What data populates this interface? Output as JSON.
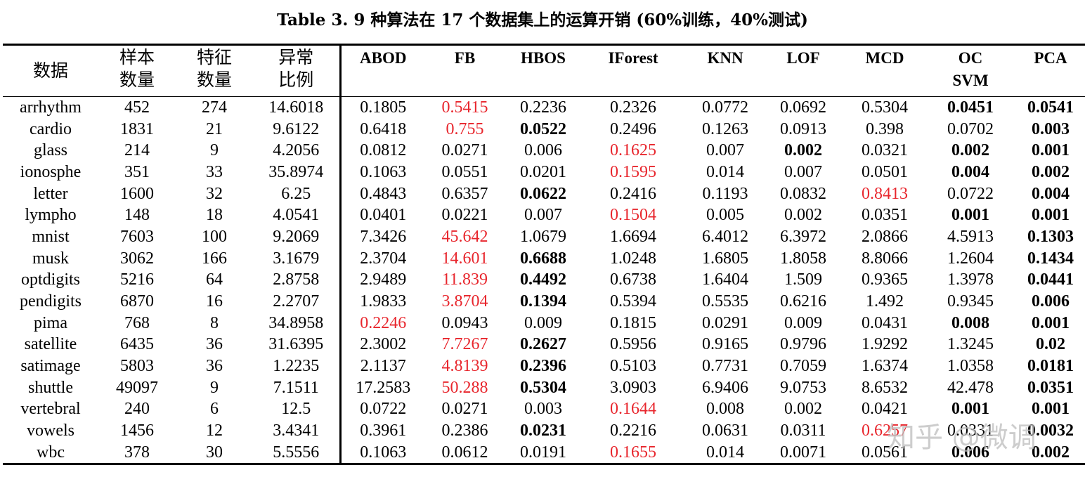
{
  "caption": "Table 3. 9 种算法在 17 个数据集上的运算开销 (60%训练，40%测试)",
  "colors": {
    "red": "#e8262d",
    "text": "#000000"
  },
  "header": {
    "dataset": "数据",
    "samples": [
      "样本",
      "数量"
    ],
    "features": [
      "特征",
      "数量"
    ],
    "outlier_ratio": [
      "异常",
      "比例"
    ],
    "algorithms": [
      [
        "ABOD"
      ],
      [
        "FB"
      ],
      [
        "HBOS"
      ],
      [
        "IForest"
      ],
      [
        "KNN"
      ],
      [
        "LOF"
      ],
      [
        "MCD"
      ],
      [
        "OC",
        "SVM"
      ],
      [
        "PCA"
      ]
    ]
  },
  "rows": [
    {
      "name": "arrhythm",
      "n": "452",
      "d": "274",
      "ratio": "14.6018",
      "v": [
        "0.1805",
        "0.5415",
        "0.2236",
        "0.2326",
        "0.0772",
        "0.0692",
        "0.5304",
        "0.0451",
        "0.0541"
      ],
      "red": [
        1
      ],
      "bold": [
        7,
        8
      ]
    },
    {
      "name": "cardio",
      "n": "1831",
      "d": "21",
      "ratio": "9.6122",
      "v": [
        "0.6418",
        "0.755",
        "0.0522",
        "0.2496",
        "0.1263",
        "0.0913",
        "0.398",
        "0.0702",
        "0.003"
      ],
      "red": [
        1
      ],
      "bold": [
        2,
        8
      ]
    },
    {
      "name": "glass",
      "n": "214",
      "d": "9",
      "ratio": "4.2056",
      "v": [
        "0.0812",
        "0.0271",
        "0.006",
        "0.1625",
        "0.007",
        "0.002",
        "0.0321",
        "0.002",
        "0.001"
      ],
      "red": [
        3
      ],
      "bold": [
        5,
        7,
        8
      ]
    },
    {
      "name": "ionosphe",
      "n": "351",
      "d": "33",
      "ratio": "35.8974",
      "v": [
        "0.1063",
        "0.0551",
        "0.0201",
        "0.1595",
        "0.014",
        "0.007",
        "0.0501",
        "0.004",
        "0.002"
      ],
      "red": [
        3
      ],
      "bold": [
        7,
        8
      ]
    },
    {
      "name": "letter",
      "n": "1600",
      "d": "32",
      "ratio": "6.25",
      "v": [
        "0.4843",
        "0.6357",
        "0.0622",
        "0.2416",
        "0.1193",
        "0.0832",
        "0.8413",
        "0.0722",
        "0.004"
      ],
      "red": [
        6
      ],
      "bold": [
        2,
        8
      ]
    },
    {
      "name": "lympho",
      "n": "148",
      "d": "18",
      "ratio": "4.0541",
      "v": [
        "0.0401",
        "0.0221",
        "0.007",
        "0.1504",
        "0.005",
        "0.002",
        "0.0351",
        "0.001",
        "0.001"
      ],
      "red": [
        3
      ],
      "bold": [
        7,
        8
      ]
    },
    {
      "name": "mnist",
      "n": "7603",
      "d": "100",
      "ratio": "9.2069",
      "v": [
        "7.3426",
        "45.642",
        "1.0679",
        "1.6694",
        "6.4012",
        "6.3972",
        "2.0866",
        "4.5913",
        "0.1303"
      ],
      "red": [
        1
      ],
      "bold": [
        8
      ]
    },
    {
      "name": "musk",
      "n": "3062",
      "d": "166",
      "ratio": "3.1679",
      "v": [
        "2.3704",
        "14.601",
        "0.6688",
        "1.0248",
        "1.6805",
        "1.8058",
        "8.8066",
        "1.2604",
        "0.1434"
      ],
      "red": [
        1
      ],
      "bold": [
        2,
        8
      ]
    },
    {
      "name": "optdigits",
      "n": "5216",
      "d": "64",
      "ratio": "2.8758",
      "v": [
        "2.9489",
        "11.839",
        "0.4492",
        "0.6738",
        "1.6404",
        "1.509",
        "0.9365",
        "1.3978",
        "0.0441"
      ],
      "red": [
        1
      ],
      "bold": [
        2,
        8
      ]
    },
    {
      "name": "pendigits",
      "n": "6870",
      "d": "16",
      "ratio": "2.2707",
      "v": [
        "1.9833",
        "3.8704",
        "0.1394",
        "0.5394",
        "0.5535",
        "0.6216",
        "1.492",
        "0.9345",
        "0.006"
      ],
      "red": [
        1
      ],
      "bold": [
        2,
        8
      ]
    },
    {
      "name": "pima",
      "n": "768",
      "d": "8",
      "ratio": "34.8958",
      "v": [
        "0.2246",
        "0.0943",
        "0.009",
        "0.1815",
        "0.0291",
        "0.009",
        "0.0431",
        "0.008",
        "0.001"
      ],
      "red": [
        0
      ],
      "bold": [
        7,
        8
      ]
    },
    {
      "name": "satellite",
      "n": "6435",
      "d": "36",
      "ratio": "31.6395",
      "v": [
        "2.3002",
        "7.7267",
        "0.2627",
        "0.5956",
        "0.9165",
        "0.9796",
        "1.9292",
        "1.3245",
        "0.02"
      ],
      "red": [
        1
      ],
      "bold": [
        2,
        8
      ]
    },
    {
      "name": "satimage",
      "n": "5803",
      "d": "36",
      "ratio": "1.2235",
      "v": [
        "2.1137",
        "4.8139",
        "0.2396",
        "0.5103",
        "0.7731",
        "0.7059",
        "1.6374",
        "1.0358",
        "0.0181"
      ],
      "red": [
        1
      ],
      "bold": [
        2,
        8
      ]
    },
    {
      "name": "shuttle",
      "n": "49097",
      "d": "9",
      "ratio": "7.1511",
      "v": [
        "17.2583",
        "50.288",
        "0.5304",
        "3.0903",
        "6.9406",
        "9.0753",
        "8.6532",
        "42.478",
        "0.0351"
      ],
      "red": [
        1
      ],
      "bold": [
        2,
        8
      ]
    },
    {
      "name": "vertebral",
      "n": "240",
      "d": "6",
      "ratio": "12.5",
      "v": [
        "0.0722",
        "0.0271",
        "0.003",
        "0.1644",
        "0.008",
        "0.002",
        "0.0421",
        "0.001",
        "0.001"
      ],
      "red": [
        3
      ],
      "bold": [
        7,
        8
      ]
    },
    {
      "name": "vowels",
      "n": "1456",
      "d": "12",
      "ratio": "3.4341",
      "v": [
        "0.3961",
        "0.2386",
        "0.0231",
        "0.2216",
        "0.0631",
        "0.0311",
        "0.6257",
        "0.0331",
        "0.0032"
      ],
      "red": [
        6
      ],
      "bold": [
        2,
        8
      ]
    },
    {
      "name": "wbc",
      "n": "378",
      "d": "30",
      "ratio": "5.5556",
      "v": [
        "0.1063",
        "0.0612",
        "0.0191",
        "0.1655",
        "0.014",
        "0.0071",
        "0.0561",
        "0.006",
        "0.002"
      ],
      "red": [
        3
      ],
      "bold": [
        7,
        8
      ]
    }
  ],
  "watermark": "知乎 @微调"
}
